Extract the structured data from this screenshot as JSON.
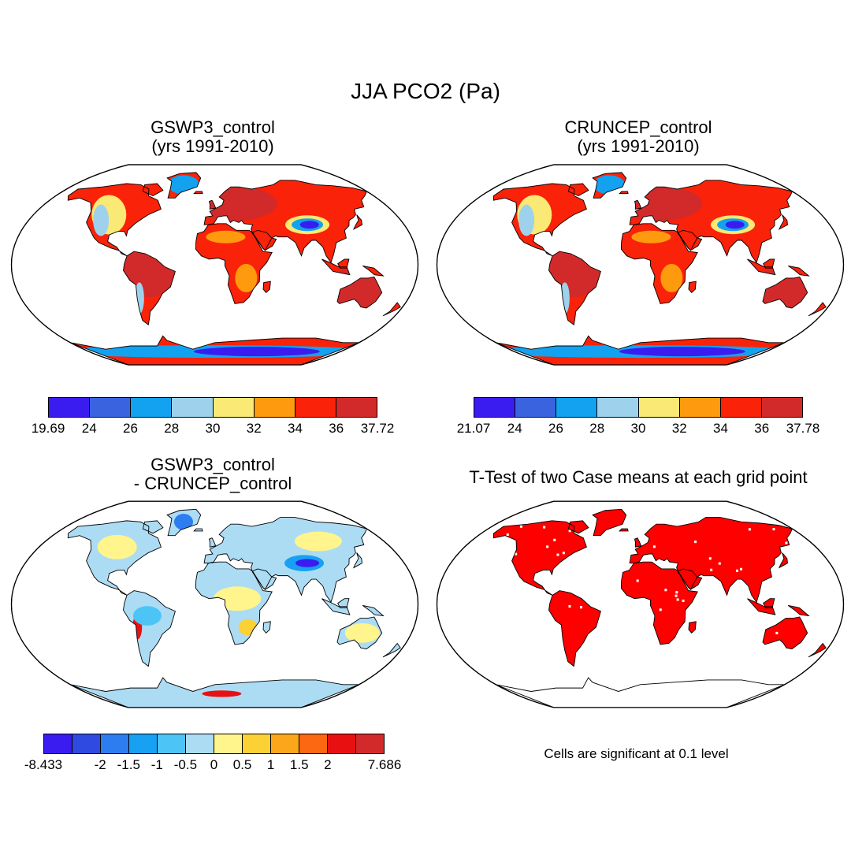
{
  "title": "JJA PCO2 (Pa)",
  "panels": [
    {
      "id": "gswp3",
      "title_lines": [
        "GSWP3_control",
        "(yrs 1991-2010)"
      ],
      "map_variant": "mean"
    },
    {
      "id": "cruncep",
      "title_lines": [
        "CRUNCEP_control",
        "(yrs 1991-2010)"
      ],
      "map_variant": "mean"
    },
    {
      "id": "diff",
      "title_lines": [
        "GSWP3_control",
        "- CRUNCEP_control"
      ],
      "map_variant": "diff"
    },
    {
      "id": "ttest",
      "title_lines": [
        "T-Test of two Case means at each grid point"
      ],
      "map_variant": "ttest"
    }
  ],
  "colorbars": {
    "gswp3": {
      "colors": [
        "#3a1cf0",
        "#3a63e0",
        "#12a2f0",
        "#9ed2ec",
        "#fae974",
        "#fd9a0d",
        "#fa2208",
        "#d22a2a"
      ],
      "labels": [
        "19.69",
        "24",
        "26",
        "28",
        "30",
        "32",
        "34",
        "36",
        "37.72"
      ]
    },
    "cruncep": {
      "colors": [
        "#3a1cf0",
        "#3a63e0",
        "#12a2f0",
        "#9ed2ec",
        "#fae974",
        "#fd9a0d",
        "#fa2208",
        "#d22a2a"
      ],
      "labels": [
        "21.07",
        "24",
        "26",
        "28",
        "30",
        "32",
        "34",
        "36",
        "37.78"
      ]
    },
    "diff": {
      "colors": [
        "#3a1cf0",
        "#2f4ae0",
        "#2e7df0",
        "#18a0f2",
        "#4dc4f6",
        "#acdcf4",
        "#fff58c",
        "#fcd134",
        "#fca71b",
        "#fc6712",
        "#e81010",
        "#d22a2a"
      ],
      "labels": [
        "-8.433",
        "",
        "-2",
        "-1.5",
        "-1",
        "-0.5",
        "0",
        "0.5",
        "1",
        "1.5",
        "2",
        "",
        "7.686"
      ]
    }
  },
  "significance_note": "Cells are significant at 0.1 level",
  "colors": {
    "ocean": "#ffffff",
    "coast": "#000000",
    "significant": "#ff0000"
  }
}
